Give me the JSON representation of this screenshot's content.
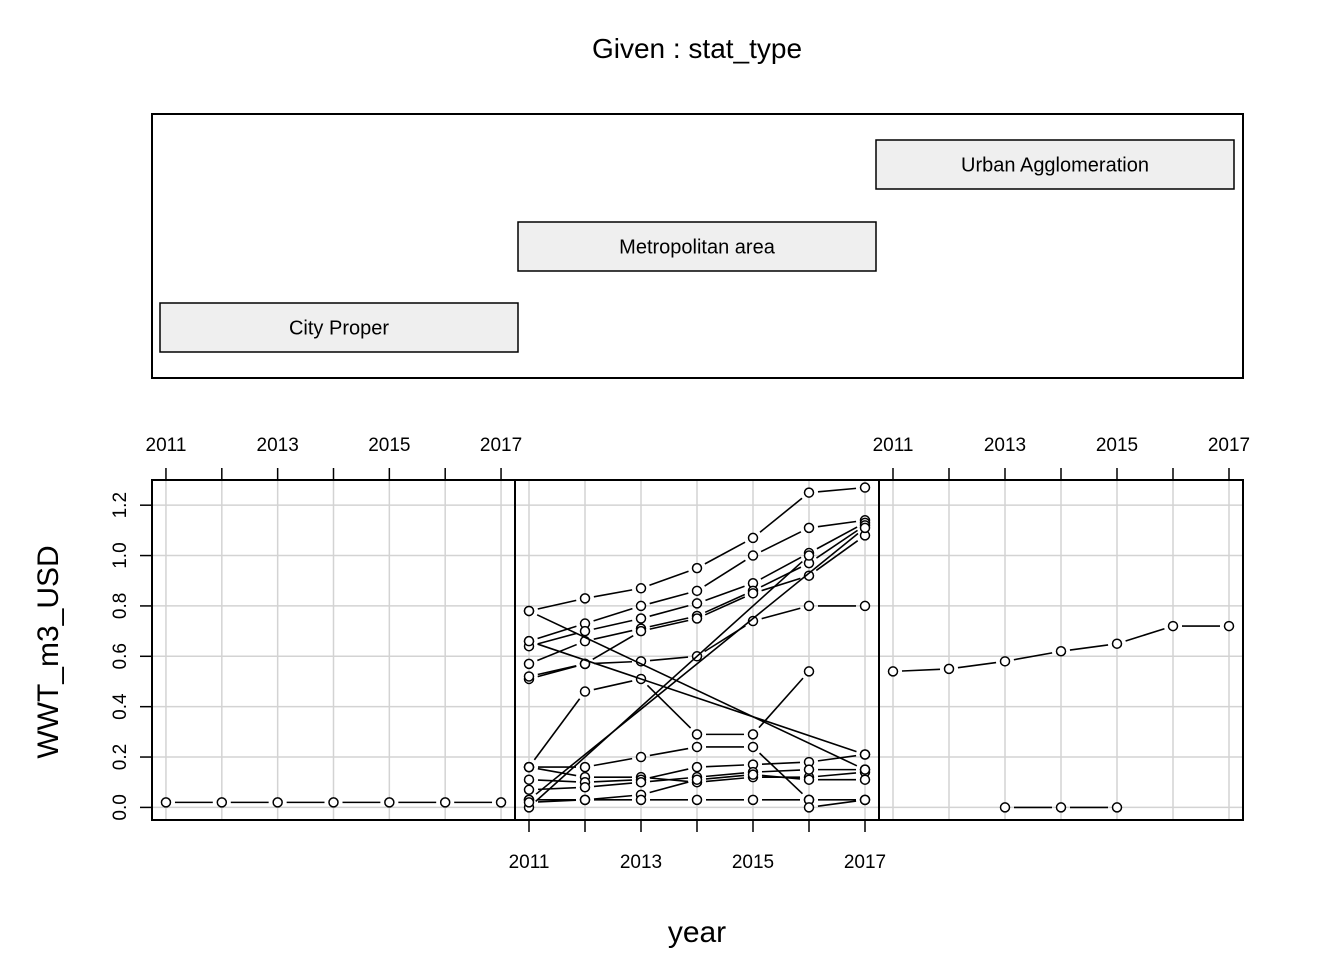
{
  "chart_data": {
    "type": "coplot",
    "title": "Given : stat_type",
    "xlabel": "year",
    "ylabel": "WWT_m3_USD",
    "given_levels": [
      "City Proper",
      "Metropolitan area",
      "Urban Agglomeration"
    ],
    "x_ticks": [
      "2011",
      "2013",
      "2015",
      "2017"
    ],
    "y_ticks": [
      "0.0",
      "0.2",
      "0.4",
      "0.6",
      "0.8",
      "1.0",
      "1.2"
    ],
    "xlim": [
      2010.75,
      2017.25
    ],
    "ylim": [
      -0.05,
      1.3
    ],
    "grid": true,
    "panels": [
      {
        "level": "City Proper",
        "series": [
          {
            "x": [
              2011,
              2012,
              2013,
              2014,
              2015,
              2016,
              2017
            ],
            "y": [
              0.02,
              0.02,
              0.02,
              0.02,
              0.02,
              0.02,
              0.02
            ]
          }
        ]
      },
      {
        "level": "Metropolitan area",
        "series": [
          {
            "x": [
              2011,
              2012,
              2013,
              2014,
              2015,
              2016,
              2017
            ],
            "y": [
              0.78,
              0.83,
              0.87,
              0.95,
              1.07,
              1.25,
              1.27
            ]
          },
          {
            "x": [
              2011,
              2012,
              2013,
              2014,
              2015,
              2016,
              2017
            ],
            "y": [
              0.66,
              0.73,
              0.8,
              0.86,
              1.0,
              1.11,
              1.14
            ]
          },
          {
            "x": [
              2011,
              2012,
              2013,
              2014,
              2015,
              2016,
              2017
            ],
            "y": [
              0.64,
              0.7,
              0.75,
              0.81,
              0.89,
              1.01,
              1.13
            ]
          },
          {
            "x": [
              2011,
              2012,
              2013,
              2014,
              2015,
              2016,
              2017
            ],
            "y": [
              0.57,
              0.66,
              0.71,
              0.76,
              0.86,
              0.97,
              1.12
            ]
          },
          {
            "x": [
              2011,
              2012,
              2013,
              2014,
              2015,
              2016,
              2017
            ],
            "y": [
              0.51,
              0.57,
              0.7,
              0.75,
              0.85,
              0.92,
              1.08
            ]
          },
          {
            "x": [
              2011,
              2012,
              2013,
              2014,
              2015,
              2016,
              2017
            ],
            "y": [
              0.52,
              0.57,
              0.58,
              0.6,
              0.74,
              0.8,
              0.8
            ]
          },
          {
            "x": [
              2011,
              2012,
              2013,
              2014,
              2015,
              2016,
              2017
            ],
            "y": [
              0.16,
              0.46,
              0.51,
              0.29,
              0.29,
              0.54,
              null
            ]
          },
          {
            "x": [
              2011,
              2017
            ],
            "y": [
              0.78,
              0.15
            ]
          },
          {
            "x": [
              2011,
              2017
            ],
            "y": [
              0.66,
              0.21
            ]
          },
          {
            "x": [
              2011,
              2017
            ],
            "y": [
              0.03,
              1.11
            ]
          },
          {
            "x": [
              2011,
              2016
            ],
            "y": [
              0.0,
              1.0
            ]
          },
          {
            "x": [
              2011,
              2012,
              2013,
              2014,
              2015,
              2016,
              2017
            ],
            "y": [
              0.16,
              0.16,
              0.2,
              0.24,
              0.24,
              0.03,
              null
            ]
          },
          {
            "x": [
              2011,
              2012,
              2013,
              2014,
              2015,
              2016,
              2017
            ],
            "y": [
              0.16,
              0.12,
              0.12,
              0.1,
              0.12,
              0.12,
              0.14
            ]
          },
          {
            "x": [
              2011,
              2012,
              2013,
              2014,
              2015,
              2016,
              2017
            ],
            "y": [
              0.11,
              0.1,
              0.11,
              0.16,
              0.17,
              0.18,
              0.21
            ]
          },
          {
            "x": [
              2011,
              2012,
              2013,
              2014,
              2015,
              2016,
              2017
            ],
            "y": [
              0.07,
              0.08,
              0.1,
              0.12,
              0.14,
              0.15,
              0.15
            ]
          },
          {
            "x": [
              2011,
              2012,
              2013,
              2014,
              2015,
              2016,
              2017
            ],
            "y": [
              0.03,
              0.03,
              0.05,
              0.11,
              0.13,
              0.11,
              0.11
            ]
          },
          {
            "x": [
              2011,
              2012,
              2013,
              2014,
              2015,
              2016,
              2017
            ],
            "y": [
              0.02,
              0.03,
              0.03,
              0.03,
              0.03,
              0.03,
              0.03
            ]
          },
          {
            "x": [
              2016,
              2017
            ],
            "y": [
              0.0,
              0.03
            ]
          }
        ]
      },
      {
        "level": "Urban Agglomeration",
        "series": [
          {
            "x": [
              2011,
              2012,
              2013,
              2014,
              2015,
              2016,
              2017
            ],
            "y": [
              0.54,
              0.55,
              0.58,
              0.62,
              0.65,
              0.72,
              0.72
            ]
          },
          {
            "x": [
              2013,
              2014,
              2015
            ],
            "y": [
              0.0,
              0.0,
              0.0
            ]
          }
        ]
      }
    ]
  }
}
